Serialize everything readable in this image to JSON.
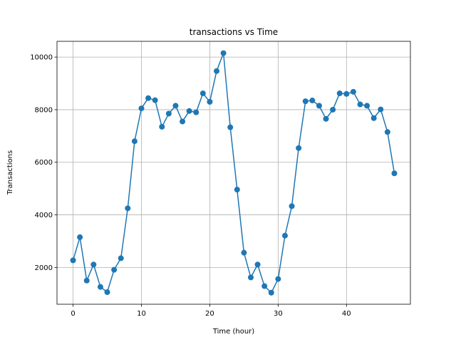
{
  "chart_data": {
    "type": "line",
    "title": "transactions vs Time",
    "xlabel": "Time (hour)",
    "ylabel": "Transactions",
    "xlim": [
      -2.35,
      49.35
    ],
    "ylim": [
      600,
      10600
    ],
    "xticks": [
      0,
      10,
      20,
      30,
      40
    ],
    "yticks": [
      2000,
      4000,
      6000,
      8000,
      10000
    ],
    "grid": true,
    "marker": "circle",
    "series_color": "#1f77b4",
    "x": [
      0,
      1,
      2,
      3,
      4,
      5,
      6,
      7,
      8,
      9,
      10,
      11,
      12,
      13,
      14,
      15,
      16,
      17,
      18,
      19,
      20,
      21,
      22,
      23,
      24,
      25,
      26,
      27,
      28,
      29,
      30,
      31,
      32,
      33,
      34,
      35,
      36,
      37,
      38,
      39,
      40,
      41,
      42,
      43,
      44,
      45,
      46,
      47
    ],
    "values": [
      2270,
      3150,
      1500,
      2110,
      1260,
      1060,
      1910,
      2350,
      4250,
      6800,
      8050,
      8440,
      8360,
      7350,
      7850,
      8150,
      7550,
      7950,
      7900,
      8620,
      8300,
      9470,
      10150,
      7330,
      4960,
      2560,
      1620,
      2110,
      1290,
      1040,
      1560,
      3210,
      4330,
      6540,
      8320,
      8350,
      8150,
      7650,
      8000,
      8620,
      8600,
      8680,
      8200,
      8150,
      7680,
      8010,
      7150,
      5580
    ]
  }
}
